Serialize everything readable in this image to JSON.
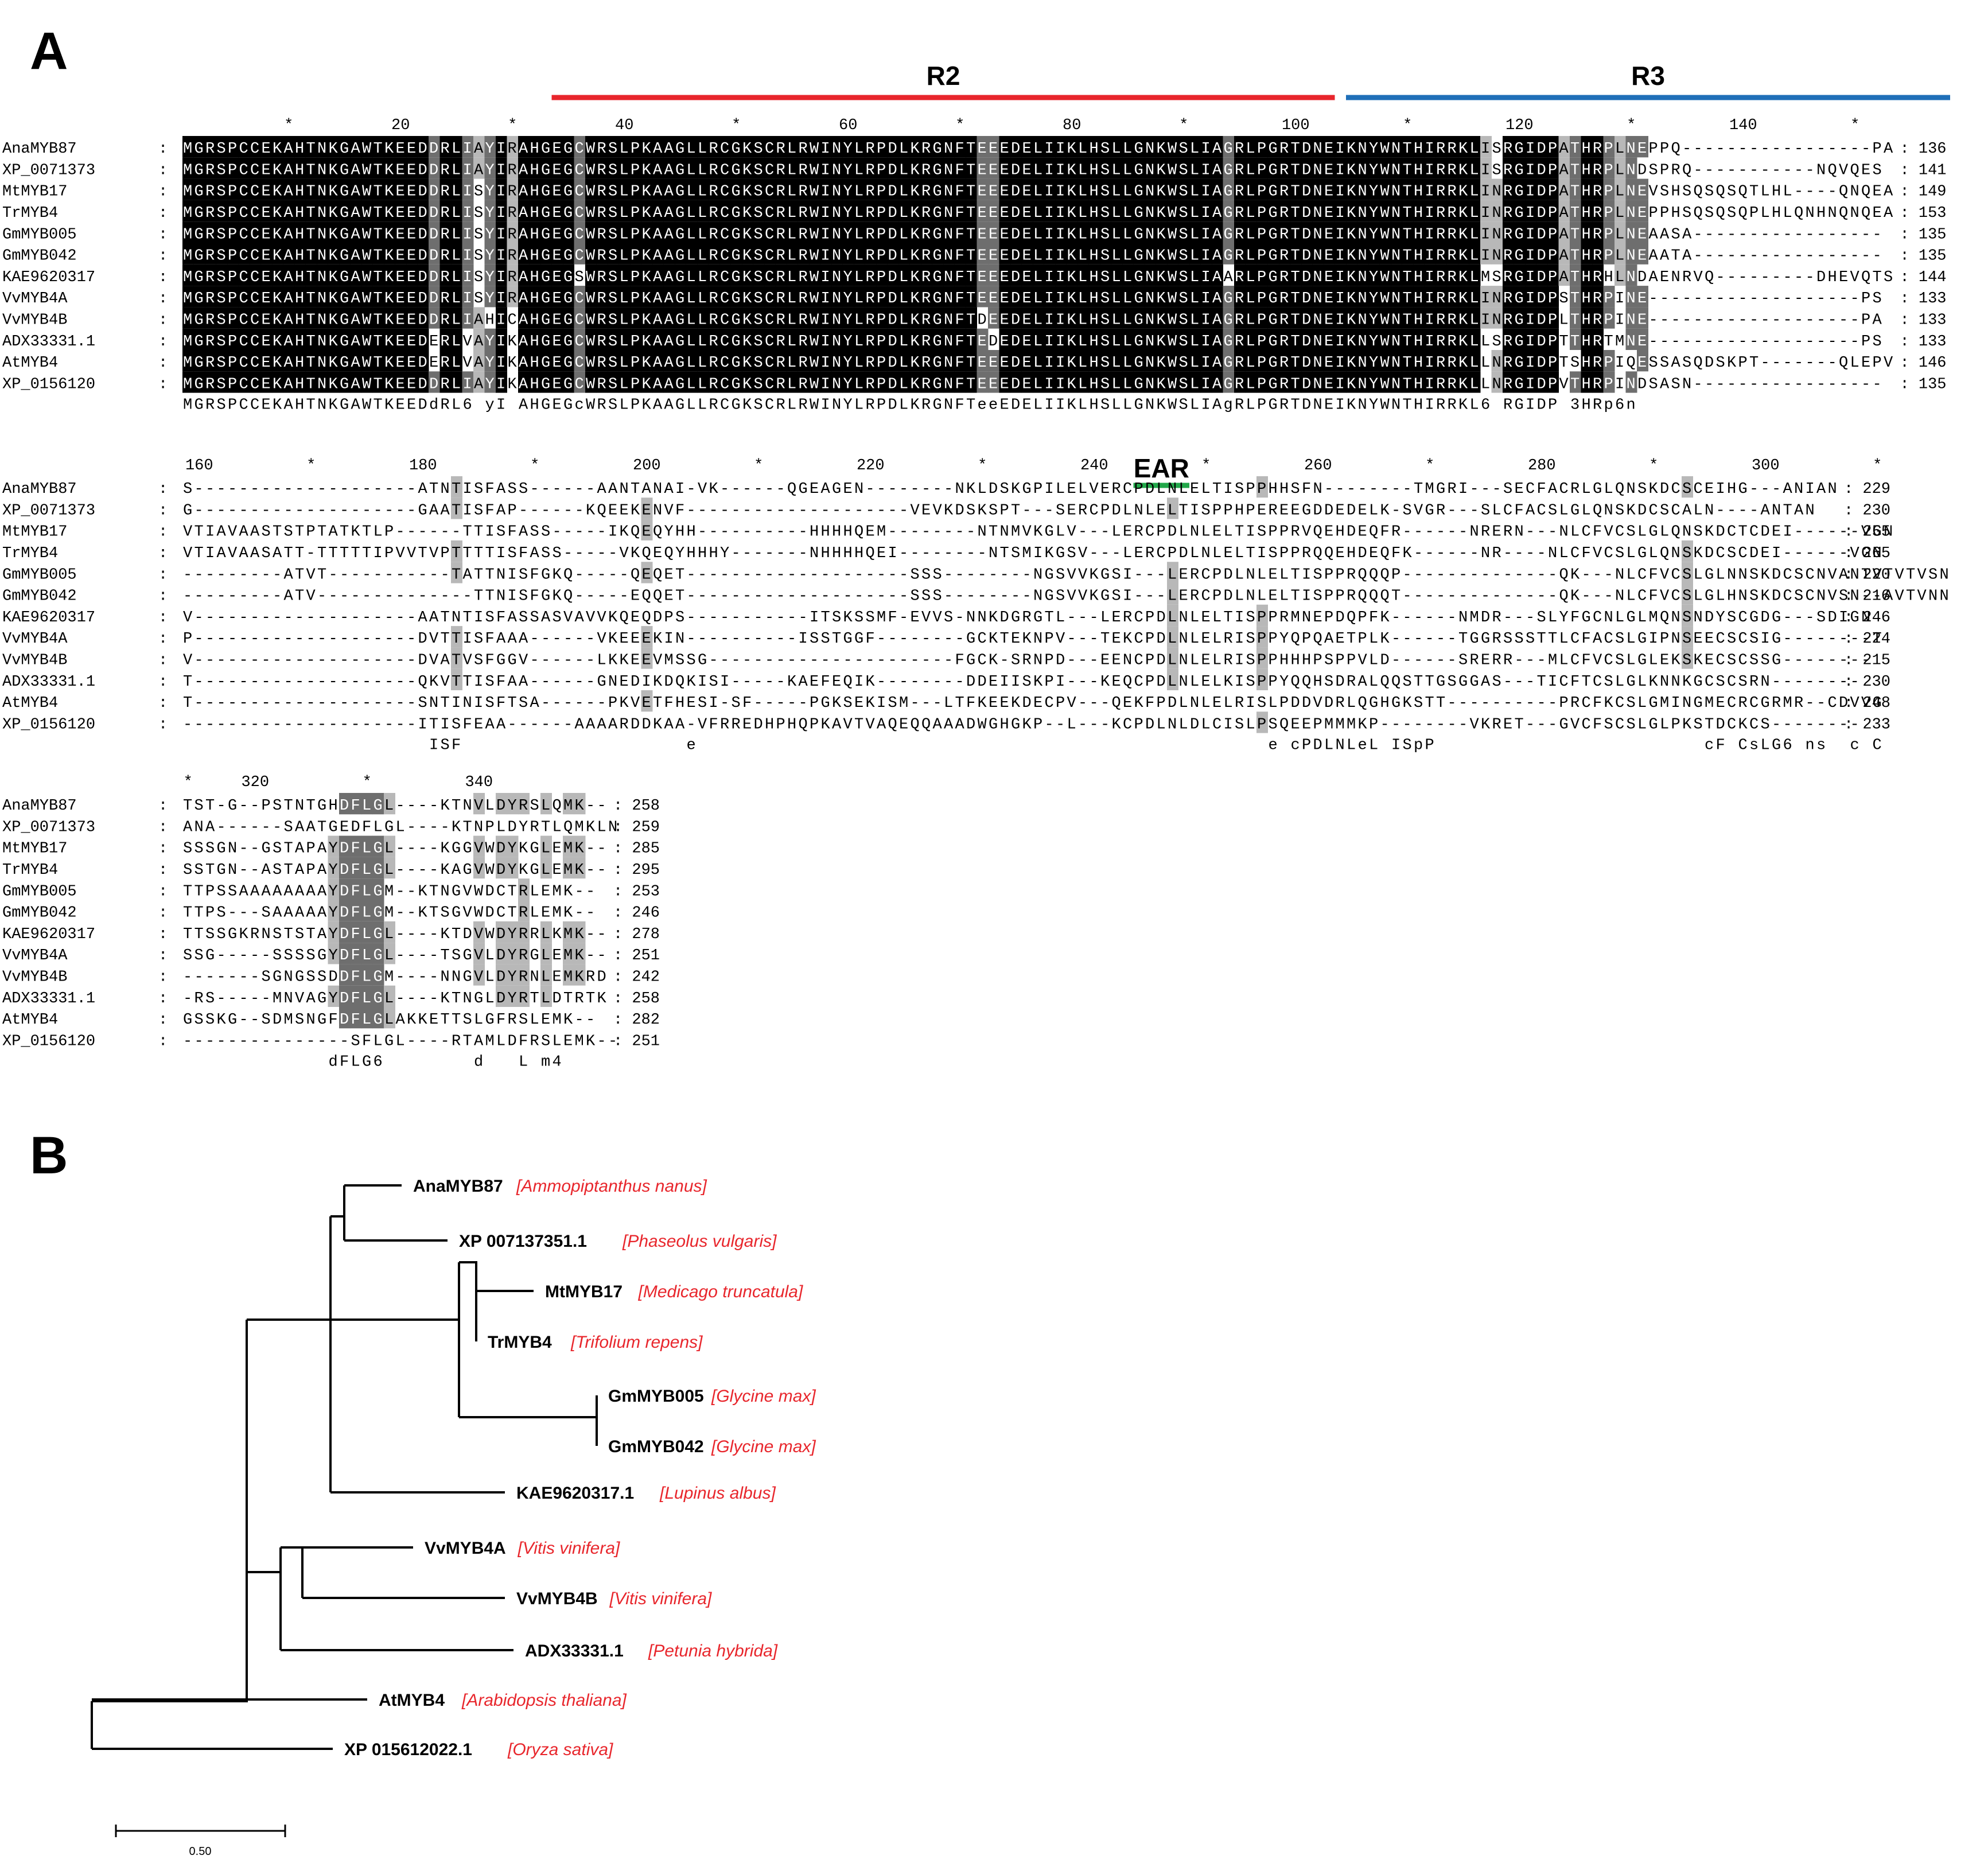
{
  "panelA": {
    "label": "A",
    "domains": [
      {
        "name": "R2",
        "color": "#e8262c",
        "from": 34,
        "to": 103
      },
      {
        "name": "R3",
        "color": "#1f6fb8",
        "from": 105,
        "to": 158
      },
      {
        "name": "EAR",
        "color": "#22a84a",
        "from": 244,
        "to": 248
      }
    ],
    "blocks": [
      {
        "ruler": {
          "start": 1,
          "end": 158,
          "numbers": [
            20,
            40,
            60,
            80,
            100,
            120,
            140
          ],
          "stars": [
            10,
            30,
            50,
            70,
            90,
            110,
            130,
            150
          ]
        },
        "rows": [
          {
            "name": "AnaMYB87",
            "seq": "MGRSPCCEKAHTNKGAWTKEEDDRLIAYIRAHGEGCWRSLPKAAGLLRCGKSCRLRWINYLRPDLKRGNFTEEEDELIIKLHSLLGNKWSLIAGRLPGRTDNEIKNYWNTHIRRKLISRGIDPATHRPLNEPPQ-----------------PA",
            "end": 136
          },
          {
            "name": "XP_0071373",
            "seq": "MGRSPCCEKAHTNKGAWTKEEDDRLIAYIRAHGEGCWRSLPKAAGLLRCGKSCRLRWINYLRPDLKRGNFTEEEDELIIKLHSLLGNKWSLIAGRLPGRTDNEIKNYWNTHIRRKLISRGIDPATHRPLNDSPRQ-----------NQVQES",
            "end": 141
          },
          {
            "name": "MtMYB17",
            "seq": "MGRSPCCEKAHTNKGAWTKEEDDRLISYIRAHGEGCWRSLPKAAGLLRCGKSCRLRWINYLRPDLKRGNFTEEEDELIIKLHSLLGNKWSLIAGRLPGRTDNEIKNYWNTHIRRKLINRGIDPATHRPLNEVSHSQSQSQTLHL----QNQEA",
            "end": 149
          },
          {
            "name": "TrMYB4",
            "seq": "MGRSPCCEKAHTNKGAWTKEEDDRLISYIRAHGEGCWRSLPKAAGLLRCGKSCRLRWINYLRPDLKRGNFTEEEDELIIKLHSLLGNKWSLIAGRLPGRTDNEIKNYWNTHIRRKLINRGIDPATHRPLNEPPHSQSQSQPLHLQNHNQNQEA",
            "end": 153
          },
          {
            "name": "GmMYB005",
            "seq": "MGRSPCCEKAHTNKGAWTKEEDDRLISYIRAHGEGCWRSLPKAAGLLRCGKSCRLRWINYLRPDLKRGNFTEEEDELIIKLHSLLGNKWSLIAGRLPGRTDNEIKNYWNTHIRRKLINRGIDPATHRPLNEAASA-----------------",
            "end": 135
          },
          {
            "name": "GmMYB042",
            "seq": "MGRSPCCEKAHTNKGAWTKEEDDRLISYIRAHGEGCWRSLPKAAGLLRCGKSCRLRWINYLRPDLKRGNFTEEEDELIIKLHSLLGNKWSLIAGRLPGRTDNEIKNYWNTHIRRKLINRGIDPATHRPLNEAATA-----------------",
            "end": 135
          },
          {
            "name": "KAE9620317",
            "seq": "MGRSPCCEKAHTNKGAWTKEEDDRLISYIRAHGEGSWRSLPKAAGLLRCGKSCRLRWINYLRPDLKRGNFTEEEDELIIKLHSLLGNKWSLIAARLPGRTDNEIKNYWNTHIRRKLMSRGIDPATHRHLNDAENRVQ---------DHEVQTS",
            "end": 144
          },
          {
            "name": "VvMYB4A",
            "seq": "MGRSPCCEKAHTNKGAWTKEEDDRLISYIRAHGEGCWRSLPKAAGLLRCGKSCRLRWINYLRPDLKRGNFTEEEDELIIKLHSLLGNKWSLIAGRLPGRTDNEIKNYWNTHIRRKLINRGIDPSTHRPINE-------------------PS",
            "end": 133
          },
          {
            "name": "VvMYB4B",
            "seq": "MGRSPCCEKAHTNKGAWTKEEDDRLIAHICAHGEGCWRSLPKAAGLLRCGKSCRLRWINYLRPDLKRGNFTDEEDELIIKLHSLLGNKWSLIAGRLPGRTDNEIKNYWNTHIRRKLINRGIDPLTHRPINE-------------------PA",
            "end": 133
          },
          {
            "name": "ADX33331.1",
            "seq": "MGRSPCCEKAHTNKGAWTKEEDERLVAYIKAHGEGCWRSLPKAAGLLRCGKSCRLRWINYLRPDLKRGNFTEDEDELIIKLHSLLGNKWSLIAGRLPGRTDNEIKNYWNTHIRRKLLSRGIDPTTHRTMNE-------------------PS",
            "end": 133
          },
          {
            "name": "AtMYB4",
            "seq": "MGRSPCCEKAHTNKGAWTKEEDERLVAYIKAHGEGCWRSLPKAAGLLRCGKSCRLRWINYLRPDLKRGNFTEEEDELIIKLHSLLGNKWSLIAGRLPGRTDNEIKNYWNTHIRRKLLNRGIDPTSHRPIQESSASQDSKPT-------QLEPV",
            "end": 146
          },
          {
            "name": "XP_0156120",
            "seq": "MGRSPCCEKAHTNKGAWTKEEDDRLIAYIKAHGEGCWRSLPKAAGLLRCGKSCRLRWINYLRPDLKRGNFTEEEDELIIKLHSLLGNKWSLIAGRLPGRTDNEIKNYWNTHIRRKLLNRGIDPVTHRPINDSASN-----------------",
            "end": 135
          }
        ],
        "consensus": "MGRSPCCEKAHTNKGAWTKEEDdRL6 yI AHGEGcWRSLPKAAGLLRCGKSCRLRWINYLRPDLKRGNFTeeEDELIIKLHSLLGNKWSLIAgRLPGRTDNEIKNYWNTHIRRKL6 RGIDP 3HRp6n"
      },
      {
        "ruler": {
          "start": 159,
          "end": 313,
          "numbers": [
            160,
            180,
            200,
            220,
            240,
            260,
            280,
            300
          ],
          "stars": [
            170,
            190,
            210,
            230,
            250,
            270,
            290,
            310
          ]
        },
        "rows": [
          {
            "name": "AnaMYB87",
            "seq": "S--------------------ATNTISFASS------AANTANAI-VK------QGEAGEN--------NKLDSKGPILELVERCPDLNLELTISPPHHSFN--------TMGRI---SECFACRLGLQNSKDCSCEIHG---ANIAN",
            "end": 229
          },
          {
            "name": "XP_0071373",
            "seq": "G--------------------GAATISFAP------KQEEKENVF--------------------VEVKDSKSPT---SERCPDLNLELTISPPHPEREEGDDEDELK-SVGR---SLCFACSLGLQNSKDCSCALN----ANTAN",
            "end": 230
          },
          {
            "name": "MtMYB17",
            "seq": "VTIAVAASTSTPTATKTLP------TTISFASS-----IKQEQYHH----------HHHHQEM--------NTNMVKGLV---LERCPDLNLELTISPPRVQEHDEQFR------NRERN---NLCFVCSLGLQNSKDCTCDEI------VGN",
            "end": 255
          },
          {
            "name": "TrMYB4",
            "seq": "VTIAVAASATT-TTTTTIPVVTVPTTTTISFASS-----VKQEQYHHHY-------NHHHHQEI--------NTSMIKGSV---LERCPDLNLELTISPPRQQEHDEQFK------NR----NLCFVCSLGLQNSKDCSCDEI------VGN",
            "end": 265
          },
          {
            "name": "GmMYB005",
            "seq": "---------ATVT-----------TATTNISFGKQ-----QEQET--------------------SSS--------NGSVVKGSI---LERCPDLNLELTISPPRQQQP--------------QK---NLCFVCSLGLNNSKDCSCNVANTVTVTVSN",
            "end": 220
          },
          {
            "name": "GmMYB042",
            "seq": "---------ATV--------------TTNISFGKQ-----EQQET--------------------SSS--------NGSVVKGSI---LERCPDLNLELTISPPRQQQT--------------QK---NLCFVCSLGLHNSKDCSCNVSN--AVTVNN",
            "end": 216
          },
          {
            "name": "KAE9620317",
            "seq": "V--------------------AATNTISFASSASVAVVKQEQDPS-----------ITSKSSMF-EVVS-NNKDGRGTL---LERCPDLNLELTISPPRMNEPDQPFK------NMDR---SLYFGCNLGLMQNSNDYSCGDG---SDIGN",
            "end": 246
          },
          {
            "name": "VvMYB4A",
            "seq": "P--------------------DVTTISFAAA------VKEEEKIN----------ISSTGGF--------GCKTEKNPV---TEKCPDLNLELRISPPYQPQAETPLK------TGGRSSSTTLCFACSLGIPNSEECSCSIG--------T",
            "end": 224
          },
          {
            "name": "VvMYB4B",
            "seq": "V--------------------DVATVSFGGV------LKKEEVMSSG----------------------FGCK-SRNPD---EENCPDLNLELRISPPHHHPSPPVLD------SRERR---MLCFVCSLGLEKSKECSCSSG--------",
            "end": 215
          },
          {
            "name": "ADX33331.1",
            "seq": "T--------------------QKVTTISFAA------GNEDIKDQKISI-----KAEFEQIK--------DDEIISKPI---KEQCPDLNLELKISPPYQQHSDRALQQSTTGSGGAS---TICFTCSLGLKNNKGCSCSRN--------",
            "end": 230
          },
          {
            "name": "AtMYB4",
            "seq": "T--------------------SNTINISFTSA------PKVETFHESI-SF-----PGKSEKISM---LTFKEEKDECPV---QEKFPDLNLELRISLPDDVDRLQGHGKSTT----------PRCFKCSLGMINGMECRCGRMR--CDVVG",
            "end": 248
          },
          {
            "name": "XP_0156120",
            "seq": "---------------------ITISFEAA------AAAARDDKAA-VFRREDHPHQPKAVTVAQEQQAAADWGHGKP--L---KCPDLNLDLCISLPSQEEPMMMKP--------VKRET---GVCFSCSLGLPKSTDCKCS--------",
            "end": 233
          }
        ],
        "consensus": "                      ISF                    e                                                   e cPDLNLeL ISpP                        cF CsLG6 ns  c C"
      },
      {
        "ruler": {
          "start": 314,
          "end": 348,
          "numbers": [
            320,
            340
          ],
          "stars": [
            314,
            330
          ]
        },
        "rows": [
          {
            "name": "AnaMYB87",
            "seq": "TST-G--PSTNTGHDFLGL----KTNVLDYRSLQMK--",
            "end": 258
          },
          {
            "name": "XP_0071373",
            "seq": "ANA------SAATGEDFLGL----KTNPLDYRTLQMKLN",
            "end": 259
          },
          {
            "name": "MtMYB17",
            "seq": "SSSGN--GSTAPAYDFLGL----KGGVWDYKGLEMK--",
            "end": 285
          },
          {
            "name": "TrMYB4",
            "seq": "SSTGN--ASTAPAYDFLGL----KAGVWDYKGLEMK--",
            "end": 295
          },
          {
            "name": "GmMYB005",
            "seq": "TTPSSAAAAAAAAYDFLGM--KTNGVWDCTRLEMK--",
            "end": 253
          },
          {
            "name": "GmMYB042",
            "seq": "TTPS---SAAAAAYDFLGM--KTSGVWDCTRLEMK--",
            "end": 246
          },
          {
            "name": "KAE9620317",
            "seq": "TTSSGKRNSTSTAYDFLGL----KTDVWDYRRLKMK--",
            "end": 278
          },
          {
            "name": "VvMYB4A",
            "seq": "SSG-----SSSSGYDFLGL----TSGVLDYRGLEMK--",
            "end": 251
          },
          {
            "name": "VvMYB4B",
            "seq": "-------SGNGSSDDFLGM----NNGVLDYRNLEMKRD",
            "end": 242
          },
          {
            "name": "ADX33331.1",
            "seq": "-RS-----MNVAGYDFLGL----KTNGLDYRTLDTRTK",
            "end": 258
          },
          {
            "name": "AtMYB4",
            "seq": "GSSKG--SDMSNGFDFLGLAKKETTSLGFRSLEMK--",
            "end": 282
          },
          {
            "name": "XP_0156120",
            "seq": "---------------SFLGL----RTAMLDFRSLEMK--",
            "end": 251
          }
        ],
        "consensus": "             dFLG6        d   L m4"
      }
    ]
  },
  "panelB": {
    "label": "B",
    "tree": [
      {
        "id": "AnaMYB87",
        "label": "AnaMYB87",
        "species": "[Ammopiptanthus nanus]"
      },
      {
        "id": "XP007",
        "label": "XP 007137351.1",
        "species": "[Phaseolus vulgaris]"
      },
      {
        "id": "MtMYB17",
        "label": "MtMYB17",
        "species": "[Medicago truncatula]"
      },
      {
        "id": "TrMYB4",
        "label": "TrMYB4",
        "species": "[Trifolium repens]"
      },
      {
        "id": "GmMYB005",
        "label": "GmMYB005",
        "species": "[Glycine max]"
      },
      {
        "id": "GmMYB042",
        "label": "GmMYB042",
        "species": "[Glycine max]"
      },
      {
        "id": "KAE",
        "label": "KAE9620317.1",
        "species": "[Lupinus albus]"
      },
      {
        "id": "VvMYB4A",
        "label": "VvMYB4A",
        "species": "[Vitis vinifera]"
      },
      {
        "id": "VvMYB4B",
        "label": "VvMYB4B",
        "species": "[Vitis vinifera]"
      },
      {
        "id": "ADX",
        "label": "ADX33331.1",
        "species": "[Petunia hybrida]"
      },
      {
        "id": "AtMYB4",
        "label": "AtMYB4",
        "species": "[Arabidopsis thaliana]"
      },
      {
        "id": "XP015",
        "label": "XP 015612022.1",
        "species": "[Oryza sativa]"
      }
    ],
    "scale_bar": {
      "label": "0.50",
      "length": 0.5
    },
    "colors": {
      "label": "#000000",
      "species": "#e8262c",
      "branch": "#000000"
    }
  },
  "shading": {
    "identical": "#000000",
    "high": "#6e6e6e",
    "medium": "#b8b8b8"
  }
}
